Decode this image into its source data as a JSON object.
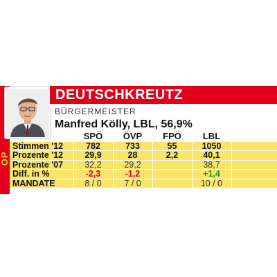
{
  "side_label": "OP",
  "title": "DEUTSCHKREUTZ",
  "role": "BÜRGERMEISTER",
  "mayor": "Manfred Kölly, LBL, 56,9%",
  "table": {
    "columns": [
      "SPÖ",
      "ÖVP",
      "FPÖ",
      "LBL"
    ],
    "rows": [
      {
        "label": "Stimmen '12",
        "values": [
          "782",
          "733",
          "55",
          "1050"
        ]
      },
      {
        "label": "Prozente '12",
        "values": [
          "29,9",
          "28",
          "2,2",
          "40,1"
        ]
      },
      {
        "label": "Prozente '07",
        "values": [
          "32,2",
          "29,2",
          "",
          "38,7"
        ]
      },
      {
        "label": "Diff. in %",
        "values": [
          "-2,3",
          "-1,2",
          "",
          "+1,4"
        ]
      },
      {
        "label": "MANDATE",
        "values": [
          "8 / 0",
          "7 / 0",
          "",
          "10 / 0"
        ]
      }
    ]
  },
  "colors": {
    "accent_red": "#e3001b",
    "table_yellow": "#fbe46a",
    "negative": "#d4002a",
    "positive": "#1a9a2a"
  },
  "icons": {
    "photo": "person-portrait"
  }
}
